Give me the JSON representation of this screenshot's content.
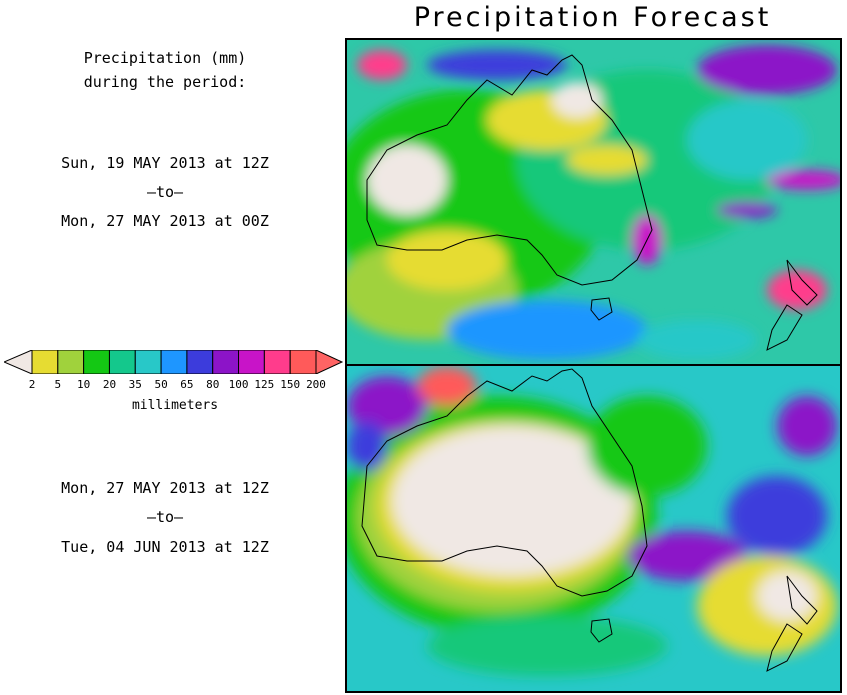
{
  "title": "Precipitation Forecast",
  "header": {
    "line1": "Precipitation (mm)",
    "line2": "during the period:"
  },
  "period1": {
    "from": "Sun, 19 MAY 2013 at 12Z",
    "to_label": "–to–",
    "to": "Mon, 27 MAY 2013 at 00Z"
  },
  "period2": {
    "from": "Mon, 27 MAY 2013 at 12Z",
    "to_label": "–to–",
    "to": "Tue, 04 JUN 2013 at 12Z"
  },
  "legend": {
    "units": "millimeters",
    "ticks": [
      "2",
      "5",
      "10",
      "20",
      "35",
      "50",
      "65",
      "80",
      "100",
      "125",
      "150",
      "200"
    ],
    "colors": [
      "#f0e8e4",
      "#e6dc32",
      "#a0d23c",
      "#14c814",
      "#14c88c",
      "#28c8c8",
      "#1e96ff",
      "#3c3cdc",
      "#8c14c8",
      "#c814c8",
      "#ff3c8c",
      "#ff5a5a",
      "#ff6464"
    ]
  }
}
